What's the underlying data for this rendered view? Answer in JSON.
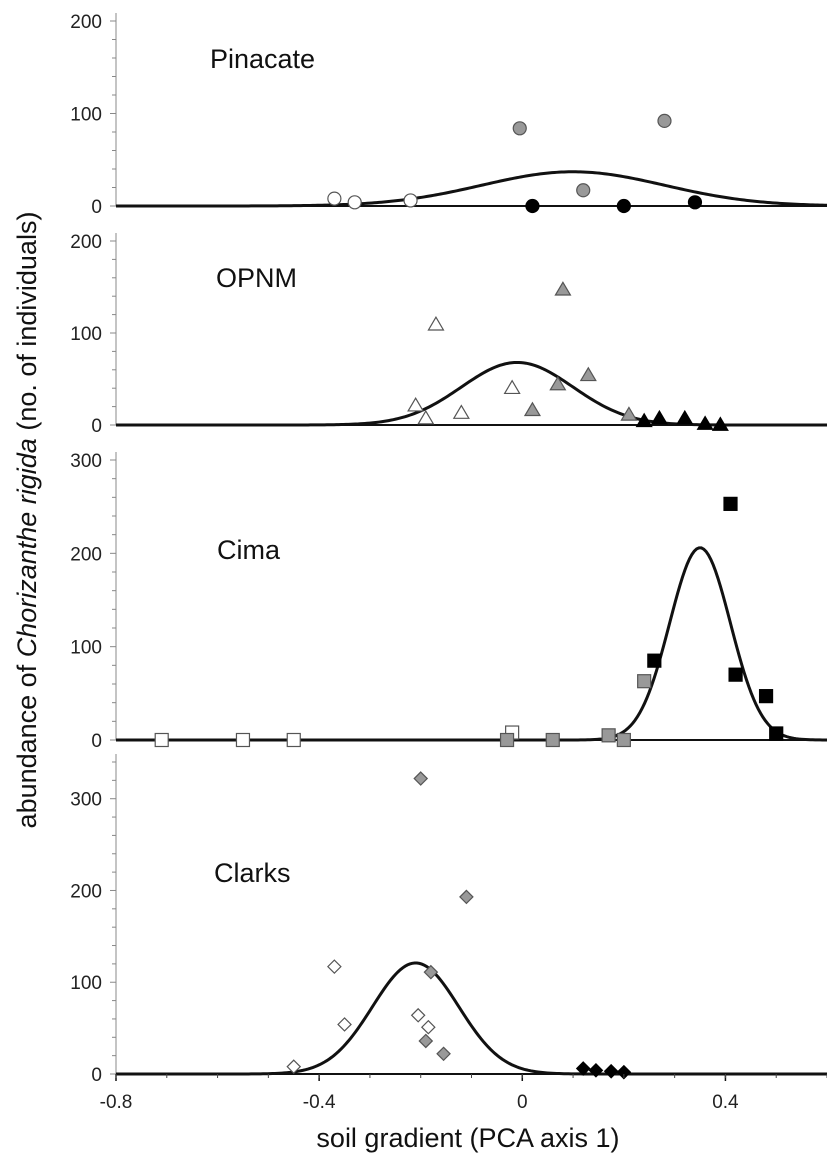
{
  "chart_data": {
    "type": "scatter",
    "xlabel": "soil gradient (PCA axis 1)",
    "ylabel": {
      "prefix": "abundance of ",
      "species": "Chorizanthe rigida",
      "suffix": " (no. of individuals)"
    },
    "xlim": [
      -0.8,
      0.6
    ],
    "xticks": [
      "-0.8",
      "-0.4",
      "0",
      "0.4"
    ],
    "xtick_values": [
      -0.8,
      -0.4,
      0,
      0.4
    ],
    "colors": {
      "open": "#ffffff",
      "gray": "#999999",
      "black": "#000000",
      "line": "#111111",
      "axis": "#888888"
    },
    "panels": [
      {
        "name": "Pinacate",
        "marker": "circle",
        "ylim": [
          0,
          200
        ],
        "yticks": [
          "0",
          "100",
          "200"
        ],
        "ytick_values": [
          0,
          100,
          200
        ],
        "curve": {
          "amplitude": 37,
          "mean": 0.1,
          "sd": 0.18
        },
        "points": [
          {
            "x": -0.37,
            "y": 8,
            "fill": "open"
          },
          {
            "x": -0.33,
            "y": 4,
            "fill": "open"
          },
          {
            "x": -0.22,
            "y": 6,
            "fill": "open"
          },
          {
            "x": -0.005,
            "y": 84,
            "fill": "gray"
          },
          {
            "x": 0.12,
            "y": 17,
            "fill": "gray"
          },
          {
            "x": 0.28,
            "y": 92,
            "fill": "gray"
          },
          {
            "x": 0.02,
            "y": 0,
            "fill": "black"
          },
          {
            "x": 0.2,
            "y": 0,
            "fill": "black"
          },
          {
            "x": 0.34,
            "y": 4,
            "fill": "black"
          }
        ]
      },
      {
        "name": "OPNM",
        "marker": "triangle",
        "ylim": [
          0,
          200
        ],
        "yticks": [
          "0",
          "100",
          "200"
        ],
        "ytick_values": [
          0,
          100,
          200
        ],
        "curve": {
          "amplitude": 68,
          "mean": -0.01,
          "sd": 0.11
        },
        "points": [
          {
            "x": -0.21,
            "y": 21,
            "fill": "open"
          },
          {
            "x": -0.19,
            "y": 7,
            "fill": "open"
          },
          {
            "x": -0.17,
            "y": 109,
            "fill": "open"
          },
          {
            "x": -0.12,
            "y": 13,
            "fill": "open"
          },
          {
            "x": -0.02,
            "y": 40,
            "fill": "open"
          },
          {
            "x": 0.02,
            "y": 16,
            "fill": "gray"
          },
          {
            "x": 0.07,
            "y": 44,
            "fill": "gray"
          },
          {
            "x": 0.08,
            "y": 147,
            "fill": "gray"
          },
          {
            "x": 0.13,
            "y": 54,
            "fill": "gray"
          },
          {
            "x": 0.21,
            "y": 11,
            "fill": "gray"
          },
          {
            "x": 0.24,
            "y": 4,
            "fill": "black"
          },
          {
            "x": 0.27,
            "y": 7,
            "fill": "black"
          },
          {
            "x": 0.32,
            "y": 7,
            "fill": "black"
          },
          {
            "x": 0.36,
            "y": 1,
            "fill": "black"
          },
          {
            "x": 0.39,
            "y": 0,
            "fill": "black"
          }
        ]
      },
      {
        "name": "Cima",
        "marker": "square",
        "ylim": [
          0,
          300
        ],
        "yticks": [
          "0",
          "100",
          "200",
          "300"
        ],
        "ytick_values": [
          0,
          100,
          200,
          300
        ],
        "curve": {
          "amplitude": 206,
          "mean": 0.35,
          "sd": 0.06
        },
        "points": [
          {
            "x": -0.71,
            "y": 0,
            "fill": "open"
          },
          {
            "x": -0.55,
            "y": 0,
            "fill": "open"
          },
          {
            "x": -0.45,
            "y": 0,
            "fill": "open"
          },
          {
            "x": -0.02,
            "y": 8,
            "fill": "open"
          },
          {
            "x": -0.03,
            "y": 0,
            "fill": "gray"
          },
          {
            "x": 0.06,
            "y": 0,
            "fill": "gray"
          },
          {
            "x": 0.17,
            "y": 5,
            "fill": "gray"
          },
          {
            "x": 0.2,
            "y": 0,
            "fill": "gray"
          },
          {
            "x": 0.24,
            "y": 63,
            "fill": "gray"
          },
          {
            "x": 0.26,
            "y": 85,
            "fill": "black"
          },
          {
            "x": 0.41,
            "y": 253,
            "fill": "black"
          },
          {
            "x": 0.42,
            "y": 70,
            "fill": "black"
          },
          {
            "x": 0.48,
            "y": 47,
            "fill": "black"
          },
          {
            "x": 0.5,
            "y": 7,
            "fill": "black"
          }
        ]
      },
      {
        "name": "Clarks",
        "marker": "diamond",
        "ylim": [
          0,
          340
        ],
        "yticks": [
          "0",
          "100",
          "200",
          "300"
        ],
        "ytick_values": [
          0,
          100,
          200,
          300
        ],
        "curve": {
          "amplitude": 121,
          "mean": -0.21,
          "sd": 0.085
        },
        "points": [
          {
            "x": -0.45,
            "y": 8,
            "fill": "open"
          },
          {
            "x": -0.37,
            "y": 117,
            "fill": "open"
          },
          {
            "x": -0.35,
            "y": 54,
            "fill": "open"
          },
          {
            "x": -0.205,
            "y": 64,
            "fill": "open"
          },
          {
            "x": -0.185,
            "y": 51,
            "fill": "open"
          },
          {
            "x": -0.2,
            "y": 322,
            "fill": "gray"
          },
          {
            "x": -0.11,
            "y": 193,
            "fill": "gray"
          },
          {
            "x": -0.18,
            "y": 111,
            "fill": "gray"
          },
          {
            "x": -0.19,
            "y": 36,
            "fill": "gray"
          },
          {
            "x": -0.155,
            "y": 22,
            "fill": "gray"
          },
          {
            "x": 0.12,
            "y": 6,
            "fill": "black"
          },
          {
            "x": 0.145,
            "y": 4,
            "fill": "black"
          },
          {
            "x": 0.175,
            "y": 3,
            "fill": "black"
          },
          {
            "x": 0.2,
            "y": 2,
            "fill": "black"
          }
        ]
      }
    ]
  }
}
